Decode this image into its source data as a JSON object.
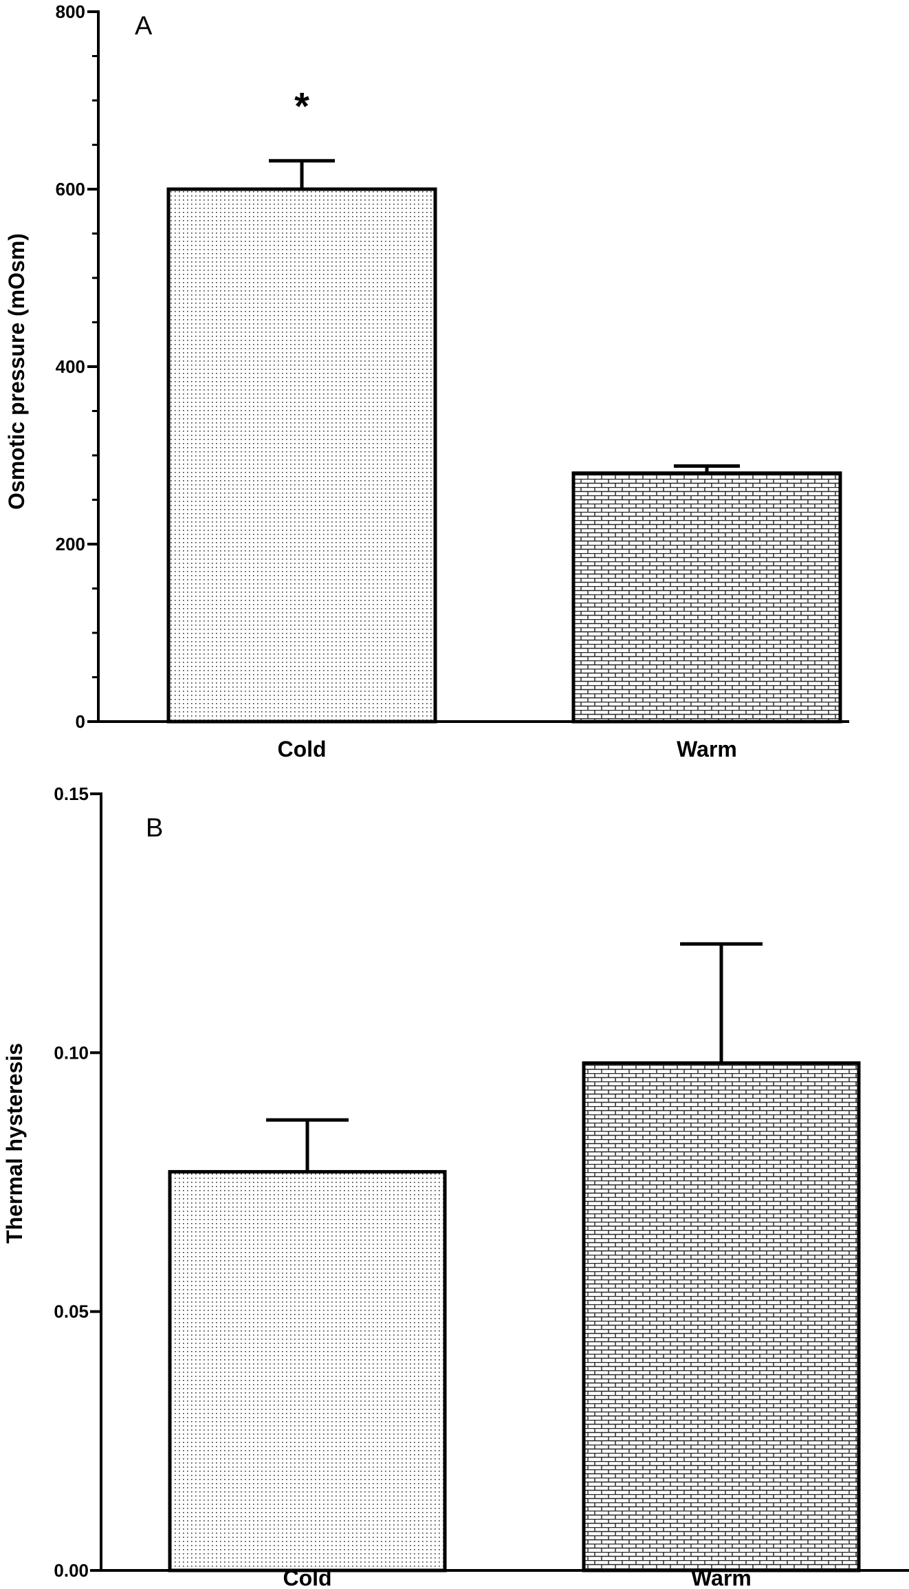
{
  "chart_data": [
    {
      "type": "bar",
      "panel_label": "A",
      "categories": [
        "Cold",
        "Warm"
      ],
      "values": [
        600,
        280
      ],
      "error_upper": [
        632,
        288
      ],
      "annotations": [
        {
          "category": "Cold",
          "text": "*"
        }
      ],
      "ylabel": "Osmotic pressure (mOsm)",
      "ylim": [
        0,
        800
      ],
      "yticks": [
        0,
        200,
        400,
        600,
        800
      ],
      "ytick_labels": [
        "0",
        "200",
        "400",
        "600",
        "800"
      ],
      "minor_tick_step": 50,
      "fill_patterns": [
        "dots",
        "bricks"
      ],
      "grid": false
    },
    {
      "type": "bar",
      "panel_label": "B",
      "categories": [
        "Cold",
        "Warm"
      ],
      "values": [
        0.077,
        0.098
      ],
      "error_upper": [
        0.087,
        0.121
      ],
      "ylabel": "Thermal hysteresis",
      "ylim": [
        0,
        0.15
      ],
      "yticks": [
        0,
        0.05,
        0.1,
        0.15
      ],
      "ytick_labels": [
        "0.00",
        "0.05",
        "0.10",
        "0.15"
      ],
      "fill_patterns": [
        "dots",
        "bricks"
      ],
      "grid": false
    }
  ]
}
